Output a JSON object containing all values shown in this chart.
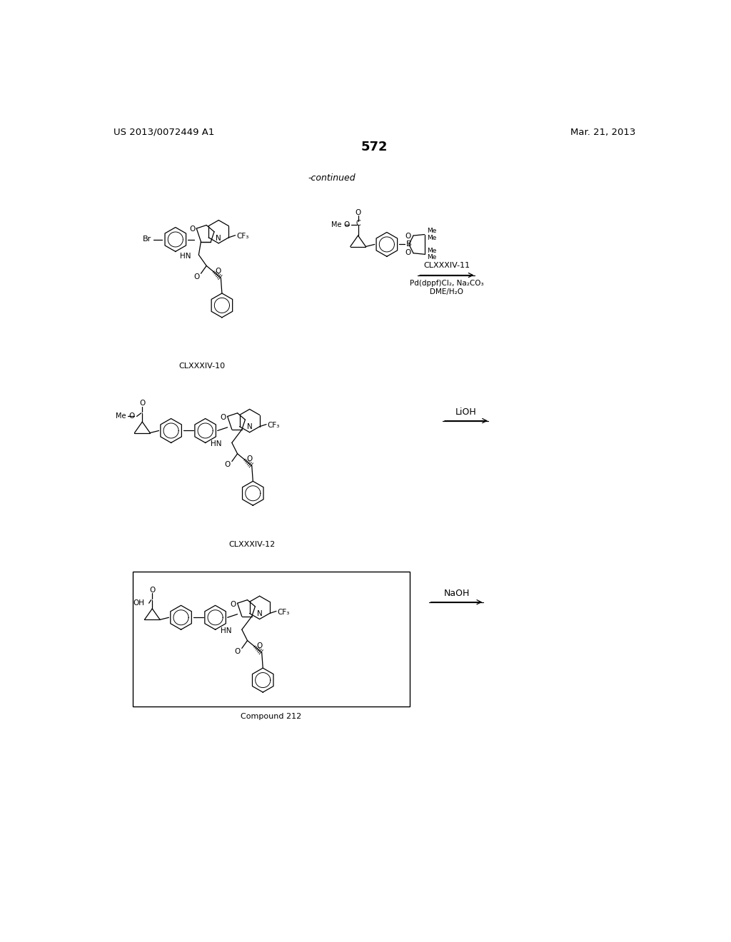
{
  "page_number": "572",
  "patent_left": "US 2013/0072449 A1",
  "patent_right": "Mar. 21, 2013",
  "continued_label": "-continued",
  "background_color": "#ffffff",
  "reaction1": {
    "reagent_label": "CLXXXIV-11",
    "reagent_line2": "Pd(dppf)Cl₂, Na₂CO₃",
    "reagent_line3": "DME/H₂O",
    "compound_left_label": "CLXXXIV-10"
  },
  "reaction2": {
    "reagent_label": "LiOH",
    "compound_left_label": "CLXXXIV-12"
  },
  "reaction3": {
    "reagent_label": "NaOH",
    "compound_label": "Compound 212"
  }
}
